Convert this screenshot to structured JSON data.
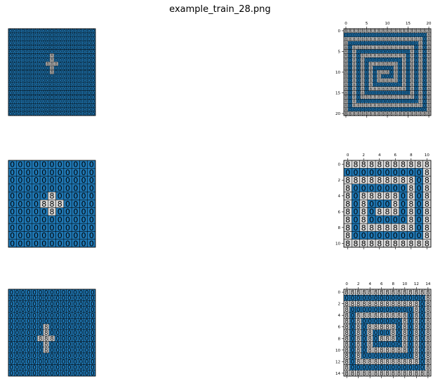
{
  "figure": {
    "title": "example_train_28.png"
  },
  "colors": {
    "blue": "#1f77b4",
    "light": "#d9d9d9",
    "grid": "#000000"
  },
  "chart_data": [
    {
      "type": "heatmap",
      "role": "train-1-input",
      "size": 21,
      "axes_visible": false,
      "background_value": 0,
      "cells_value_8": [
        [
          6,
          10
        ],
        [
          7,
          10
        ],
        [
          8,
          9
        ],
        [
          8,
          10
        ],
        [
          8,
          11
        ],
        [
          9,
          10
        ],
        [
          10,
          10
        ]
      ]
    },
    {
      "type": "heatmap",
      "role": "train-1-output",
      "size": 21,
      "axes_visible": true,
      "xticks": [
        0,
        5,
        10,
        15,
        20
      ],
      "yticks": [
        0,
        5,
        10,
        15,
        20
      ],
      "pattern": "spiral of 8s on a background of 0s"
    },
    {
      "type": "heatmap",
      "role": "train-2-input",
      "size": 11,
      "axes_visible": false,
      "background_value": 0,
      "cells_value_8": [
        [
          4,
          5
        ],
        [
          5,
          5
        ],
        [
          5,
          4
        ],
        [
          5,
          6
        ],
        [
          6,
          5
        ]
      ]
    },
    {
      "type": "heatmap",
      "role": "train-2-output",
      "size": 11,
      "axes_visible": true,
      "xticks": [
        0,
        2,
        4,
        6,
        8,
        10
      ],
      "yticks": [
        0,
        2,
        4,
        6,
        8,
        10
      ],
      "pattern": "spiral of 8s on a background of 0s"
    },
    {
      "type": "heatmap",
      "role": "train-3-input",
      "size": 15,
      "axes_visible": false,
      "background_value": 0,
      "cells_value_8": [
        [
          6,
          6
        ],
        [
          7,
          6
        ],
        [
          8,
          5
        ],
        [
          8,
          6
        ],
        [
          8,
          7
        ],
        [
          9,
          6
        ],
        [
          10,
          6
        ]
      ]
    },
    {
      "type": "heatmap",
      "role": "train-3-output",
      "size": 15,
      "axes_visible": true,
      "xticks": [
        0,
        2,
        4,
        6,
        8,
        10,
        12,
        14
      ],
      "yticks": [
        0,
        2,
        4,
        6,
        8,
        10,
        12,
        14
      ],
      "pattern": "spiral of 8s on a background of 0s"
    }
  ]
}
